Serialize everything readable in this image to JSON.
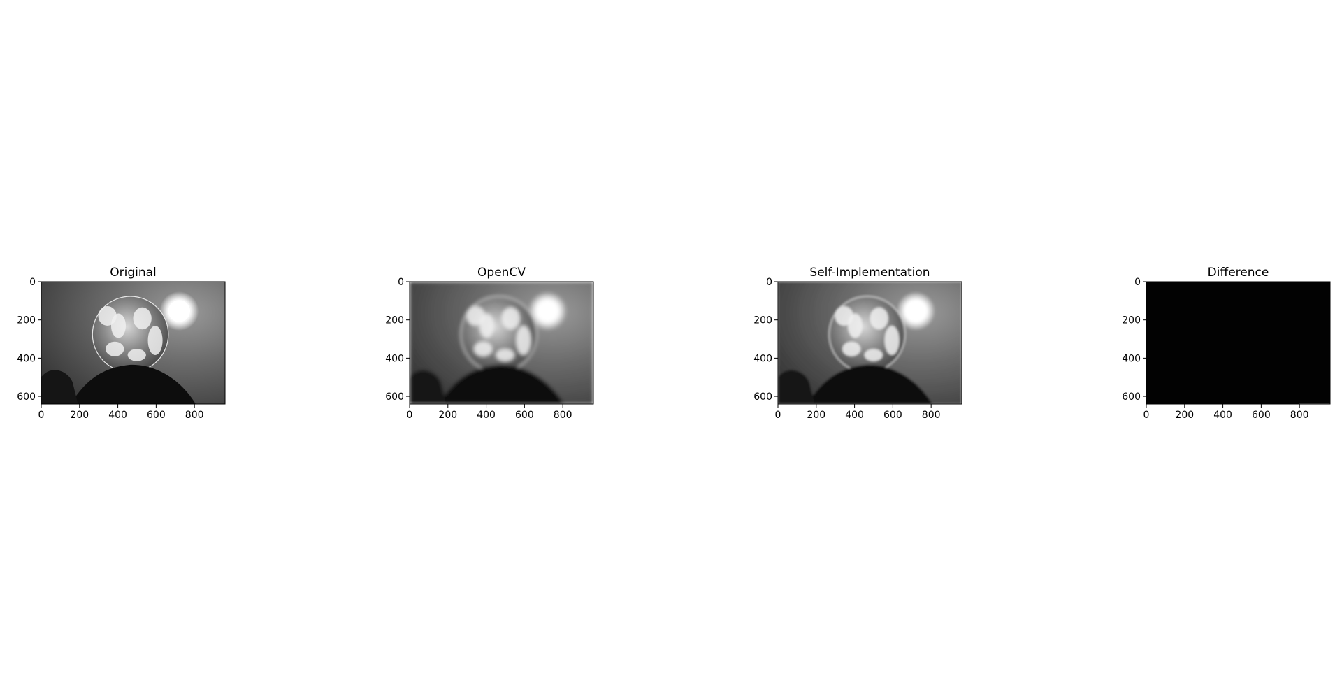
{
  "chart_data": [
    {
      "type": "image",
      "title": "Original",
      "image_extent": [
        960,
        640
      ],
      "xticks": [
        0,
        200,
        400,
        600,
        800
      ],
      "yticks": [
        0,
        200,
        400,
        600
      ],
      "xlim": [
        0,
        960
      ],
      "ylim": [
        640,
        0
      ],
      "colormap": "gray",
      "variant": "sharp"
    },
    {
      "type": "image",
      "title": "OpenCV",
      "image_extent": [
        960,
        640
      ],
      "xticks": [
        0,
        200,
        400,
        600,
        800
      ],
      "yticks": [
        0,
        200,
        400,
        600
      ],
      "xlim": [
        0,
        960
      ],
      "ylim": [
        640,
        0
      ],
      "colormap": "gray",
      "variant": "blurred"
    },
    {
      "type": "image",
      "title": "Self-Implementation",
      "image_extent": [
        960,
        640
      ],
      "xticks": [
        0,
        200,
        400,
        600,
        800
      ],
      "yticks": [
        0,
        200,
        400,
        600
      ],
      "xlim": [
        0,
        960
      ],
      "ylim": [
        640,
        0
      ],
      "colormap": "gray",
      "variant": "slightly-blurred"
    },
    {
      "type": "image",
      "title": "Difference",
      "image_extent": [
        960,
        640
      ],
      "xticks": [
        0,
        200,
        400,
        600,
        800
      ],
      "yticks": [
        0,
        200,
        400,
        600
      ],
      "xlim": [
        0,
        960
      ],
      "ylim": [
        640,
        0
      ],
      "colormap": "gray",
      "variant": "difference"
    }
  ]
}
